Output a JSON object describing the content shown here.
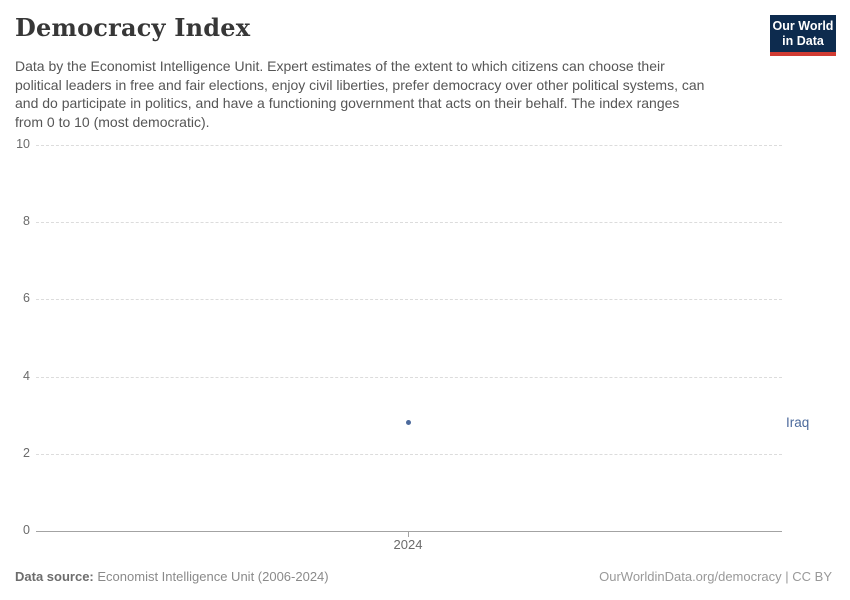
{
  "header": {
    "title": "Democracy Index",
    "subtitle_lines": [
      "Data by the Economist Intelligence Unit. Expert estimates of the extent to which citizens can choose their",
      "political leaders in free and fair elections, enjoy civil liberties, prefer democracy over other political systems, can",
      "and do participate in politics, and have a functioning government that acts on their behalf. The index ranges",
      "from 0 to 10 (most democratic)."
    ],
    "logo": {
      "line1": "Our World",
      "line2": "in Data",
      "bg_color": "#0d2b4e",
      "accent_color": "#d13b32"
    }
  },
  "chart_data": {
    "type": "scatter",
    "title": "Democracy Index",
    "x": [
      2024
    ],
    "series": [
      {
        "name": "Iraq",
        "values": [
          2.8
        ],
        "color": "#4c6a9c"
      }
    ],
    "x_ticks": [
      "2024"
    ],
    "y_ticks": [
      0,
      2,
      4,
      6,
      8,
      10
    ],
    "ylim": [
      0,
      10
    ],
    "xlabel": "",
    "ylabel": "",
    "grid": "horizontal-dashed",
    "legend_position": "right-entity-label"
  },
  "footer": {
    "source_label": "Data source:",
    "source_value": "Economist Intelligence Unit (2006-2024)",
    "credit": "OurWorldinData.org/democracy | CC BY"
  }
}
